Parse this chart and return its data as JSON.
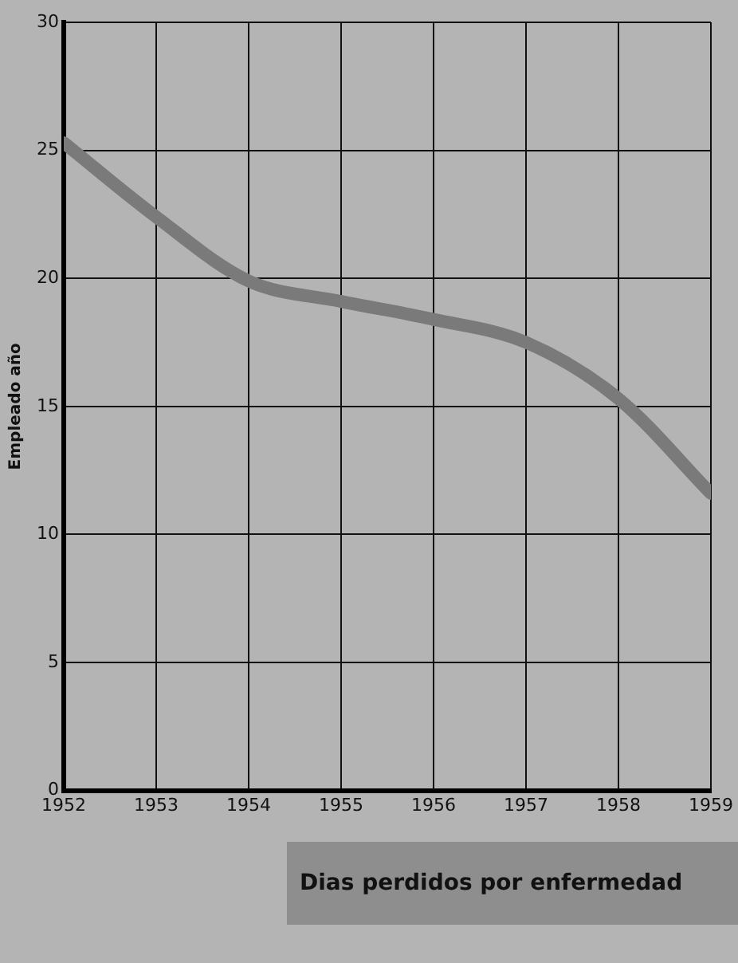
{
  "chart_data": {
    "type": "line",
    "title": "Dias perdidos por enfermedad",
    "ylabel": "Empleado año",
    "x": [
      1952,
      1953,
      1954,
      1955,
      1956,
      1957,
      1958,
      1959
    ],
    "series": [
      {
        "color": "#7a7a7a",
        "values": [
          25.3,
          22.4,
          19.9,
          19.1,
          18.4,
          17.5,
          15.3,
          11.6
        ]
      }
    ],
    "xlim": [
      1952,
      1959
    ],
    "xticks": [
      1952,
      1953,
      1954,
      1955,
      1956,
      1957,
      1958,
      1959
    ],
    "ylim": [
      0,
      30
    ],
    "yticks": [
      0,
      5,
      10,
      15,
      20,
      25,
      30
    ],
    "grid": true,
    "legend": false,
    "marker": "none",
    "line_style": "solid"
  }
}
